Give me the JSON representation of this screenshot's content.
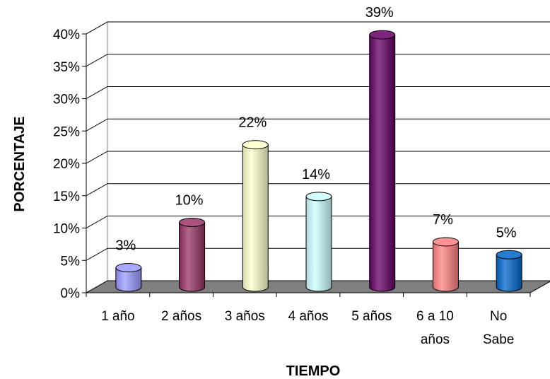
{
  "chart_data": {
    "type": "bar",
    "xlabel": "TIEMPO",
    "ylabel": "PORCENTAJE",
    "ylim": [
      0,
      40
    ],
    "yticks": [
      "0%",
      "5%",
      "10%",
      "15%",
      "20%",
      "25%",
      "30%",
      "35%",
      "40%"
    ],
    "grid": true,
    "categories": [
      [
        "1 año"
      ],
      [
        "2 años"
      ],
      [
        "3 años"
      ],
      [
        "4 años"
      ],
      [
        "5 años"
      ],
      [
        "6 a 10",
        "años"
      ],
      [
        "No",
        "Sabe"
      ]
    ],
    "values": [
      3,
      10,
      22,
      14,
      39,
      7,
      5
    ],
    "data_labels": [
      "3%",
      "10%",
      "22%",
      "14%",
      "39%",
      "7%",
      "5%"
    ],
    "colors": [
      "#9999ff",
      "#993366",
      "#ffffcc",
      "#ccffff",
      "#660066",
      "#ff8080",
      "#0066cc"
    ]
  }
}
